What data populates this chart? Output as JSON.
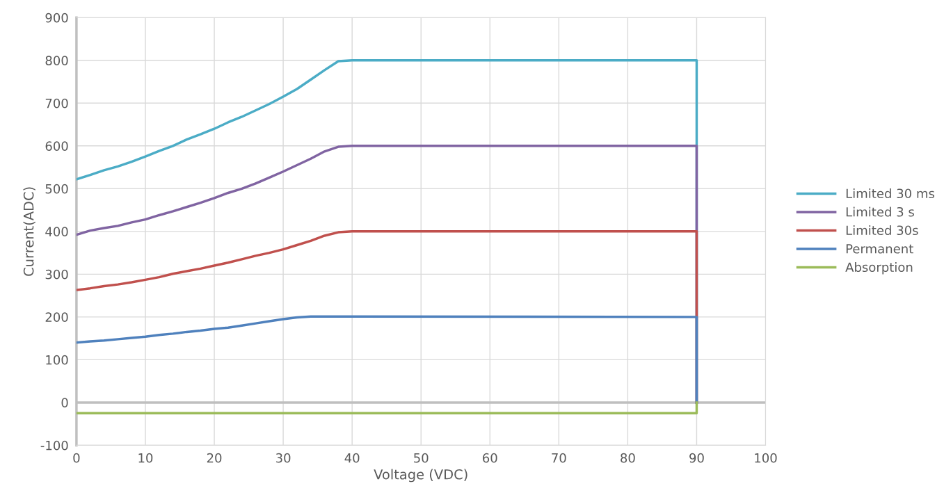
{
  "chart_data": {
    "type": "line",
    "xlabel": "Voltage (VDC)",
    "ylabel": "Current(ADC)",
    "xlim": [
      0,
      100
    ],
    "xticks": [
      0,
      10,
      20,
      30,
      40,
      50,
      60,
      70,
      80,
      90,
      100
    ],
    "ylim": [
      -100,
      900
    ],
    "yticks": [
      -100,
      0,
      100,
      200,
      300,
      400,
      500,
      600,
      700,
      800,
      900
    ],
    "grid": true,
    "legend": "right",
    "marker": "none",
    "line_style": "solid",
    "ref_lines": [
      {
        "axis": "y",
        "value": 0,
        "color": "#bfbfbf"
      }
    ],
    "series": [
      {
        "name": "Limited 30 ms",
        "color": "#4bacc6",
        "x": [
          0,
          2,
          4,
          6,
          8,
          10,
          12,
          14,
          16,
          18,
          20,
          22,
          24,
          26,
          28,
          30,
          32,
          34,
          36,
          38,
          40,
          90,
          90
        ],
        "values": [
          522,
          532,
          543,
          552,
          563,
          575,
          588,
          600,
          615,
          627,
          640,
          655,
          668,
          683,
          698,
          715,
          733,
          755,
          777,
          798,
          800,
          800,
          0
        ]
      },
      {
        "name": "Limited 3 s",
        "color": "#8064a2",
        "x": [
          0,
          2,
          4,
          6,
          8,
          10,
          12,
          14,
          16,
          18,
          20,
          22,
          24,
          26,
          28,
          30,
          32,
          34,
          36,
          38,
          40,
          90,
          90
        ],
        "values": [
          392,
          402,
          408,
          413,
          421,
          428,
          438,
          447,
          457,
          467,
          478,
          490,
          500,
          512,
          526,
          540,
          555,
          570,
          587,
          598,
          600,
          600,
          0
        ]
      },
      {
        "name": "Limited 30s",
        "color": "#c0504d",
        "x": [
          0,
          2,
          4,
          6,
          8,
          10,
          12,
          14,
          16,
          18,
          20,
          22,
          24,
          26,
          28,
          30,
          32,
          34,
          36,
          38,
          40,
          90,
          90
        ],
        "values": [
          263,
          267,
          272,
          276,
          281,
          287,
          293,
          301,
          307,
          313,
          320,
          327,
          335,
          343,
          350,
          358,
          368,
          378,
          390,
          398,
          400,
          400,
          0
        ]
      },
      {
        "name": "Permanent",
        "color": "#4f81bd",
        "x": [
          0,
          2,
          4,
          6,
          8,
          10,
          12,
          14,
          16,
          18,
          20,
          22,
          24,
          26,
          28,
          30,
          32,
          34,
          36,
          90,
          90
        ],
        "values": [
          140,
          143,
          145,
          148,
          151,
          154,
          158,
          161,
          165,
          168,
          172,
          175,
          180,
          185,
          190,
          195,
          199,
          201,
          201,
          200,
          0
        ]
      },
      {
        "name": "Absorption",
        "color": "#9bbb59",
        "x": [
          0,
          90,
          90
        ],
        "values": [
          -25,
          -25,
          0
        ]
      }
    ]
  }
}
